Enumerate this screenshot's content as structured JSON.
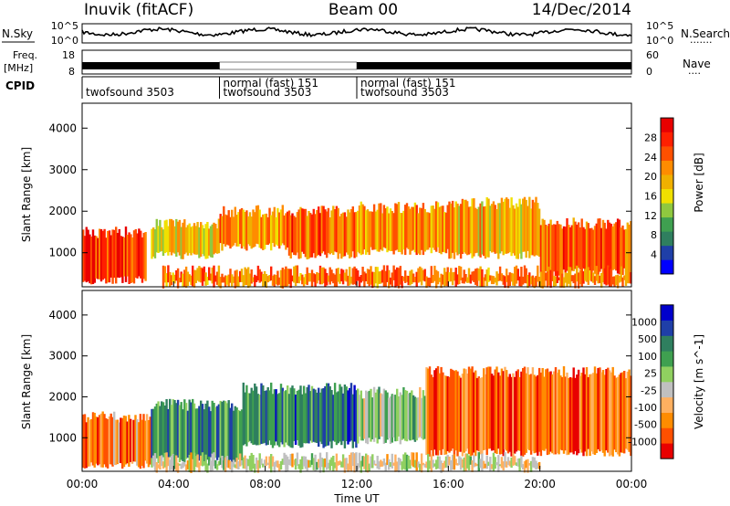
{
  "header": {
    "station": "Inuvik (fitACF)",
    "beam": "Beam 00",
    "date": "14/Dec/2014"
  },
  "left_labels": {
    "nsky": "N.Sky",
    "freq_line1": "Freq.",
    "freq_line2": "[MHz]",
    "cpid": "CPID"
  },
  "right_labels": {
    "nsearch": "N.Search",
    "nave": "Nave"
  },
  "noise_panel": {
    "left_ticks": [
      "10^5",
      "10^0"
    ],
    "right_ticks": [
      "10^5",
      "10^0"
    ]
  },
  "freq_panel": {
    "left_ticks": [
      "18",
      "8"
    ],
    "right_ticks": [
      "60",
      "0"
    ]
  },
  "cpid_segments": [
    {
      "start_hour": 0.0,
      "end_hour": 6.0,
      "line1": "",
      "line2": "twofsound 3503"
    },
    {
      "start_hour": 6.0,
      "end_hour": 12.0,
      "line1": "normal (fast) 151",
      "line2": "twofsound 3503"
    },
    {
      "start_hour": 12.0,
      "end_hour": 24.0,
      "line1": "normal (fast) 151",
      "line2": "twofsound 3503"
    }
  ],
  "chart_data": [
    {
      "type": "heatmap",
      "panel": "power",
      "ylabel": "Slant Range [km]",
      "xlabel": "Time UT",
      "x_ticks": [
        "00:00",
        "04:00",
        "08:00",
        "12:00",
        "16:00",
        "20:00",
        "00:00"
      ],
      "x_range_hours": [
        0,
        24
      ],
      "y_ticks": [
        1000,
        2000,
        3000,
        4000
      ],
      "ylim": [
        180,
        4600
      ],
      "colorbar_label": "Power [dB]",
      "colorbar_ticks": [
        "28",
        "24",
        "20",
        "16",
        "12",
        "8",
        "4"
      ],
      "colorbar_colors": [
        "#0000ff",
        "#1f3fa8",
        "#2f7f5f",
        "#3fa050",
        "#8fc83f",
        "#f0e000",
        "#f0b000",
        "#ff8c00",
        "#ff5000",
        "#ff2000",
        "#e80000"
      ],
      "bands": [
        {
          "t0": 0.0,
          "t1": 2.8,
          "r0": 300,
          "r1": 1500,
          "level": 0.8
        },
        {
          "t0": 3.0,
          "t1": 6.0,
          "r0": 900,
          "r1": 1700,
          "level": 0.55
        },
        {
          "t0": 6.0,
          "t1": 9.0,
          "r0": 1100,
          "r1": 2000,
          "level": 0.65
        },
        {
          "t0": 9.0,
          "t1": 12.0,
          "r0": 900,
          "r1": 2000,
          "level": 0.75
        },
        {
          "t0": 12.0,
          "t1": 16.0,
          "r0": 1000,
          "r1": 2100,
          "level": 0.65
        },
        {
          "t0": 16.0,
          "t1": 20.0,
          "r0": 900,
          "r1": 2200,
          "level": 0.6
        },
        {
          "t0": 20.0,
          "t1": 24.0,
          "r0": 500,
          "r1": 1700,
          "level": 0.75
        },
        {
          "t0": 3.5,
          "t1": 24.0,
          "r0": 200,
          "r1": 550,
          "level": 0.7
        }
      ]
    },
    {
      "type": "heatmap",
      "panel": "velocity",
      "ylabel": "Slant Range [km]",
      "xlabel": "Time UT",
      "x_ticks": [
        "00:00",
        "04:00",
        "08:00",
        "12:00",
        "16:00",
        "20:00",
        "00:00"
      ],
      "x_range_hours": [
        0,
        24
      ],
      "y_ticks": [
        1000,
        2000,
        3000,
        4000
      ],
      "ylim": [
        180,
        4600
      ],
      "colorbar_label": "Velocity [m s^-1]",
      "colorbar_ticks": [
        "1000",
        "500",
        "100",
        "25",
        "-25",
        "-100",
        "-500",
        "-1000"
      ],
      "colorbar_colors": [
        "#e80000",
        "#ff5000",
        "#ff8c00",
        "#ffb060",
        "#c0c0c0",
        "#90d060",
        "#3fa050",
        "#2f7f5f",
        "#1f3fa8",
        "#0000cc"
      ],
      "bands": [
        {
          "t0": 0.0,
          "t1": 3.0,
          "r0": 300,
          "r1": 1500,
          "level": 0.25
        },
        {
          "t0": 3.0,
          "t1": 7.0,
          "r0": 400,
          "r1": 1800,
          "level": 0.7
        },
        {
          "t0": 7.0,
          "t1": 12.0,
          "r0": 800,
          "r1": 2200,
          "level": 0.75
        },
        {
          "t0": 12.0,
          "t1": 15.0,
          "r0": 900,
          "r1": 2100,
          "level": 0.55
        },
        {
          "t0": 15.0,
          "t1": 24.0,
          "r0": 600,
          "r1": 2600,
          "level": 0.2
        },
        {
          "t0": 3.0,
          "t1": 20.0,
          "r0": 200,
          "r1": 500,
          "level": 0.45
        }
      ]
    }
  ]
}
